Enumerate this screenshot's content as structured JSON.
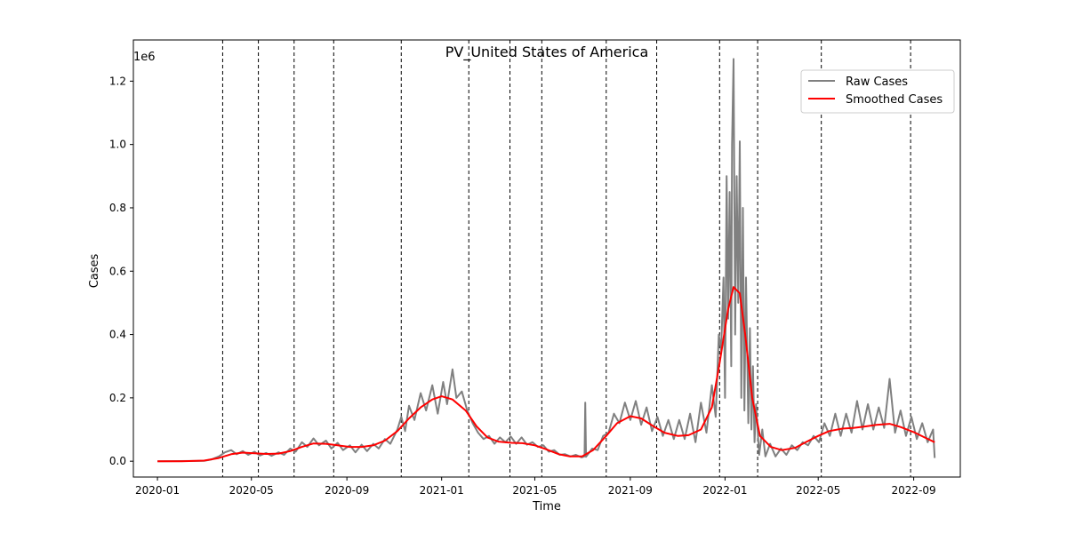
{
  "chart_data": {
    "type": "line",
    "title": "PV_United States of America",
    "xlabel": "Time",
    "ylabel": "Cases",
    "y_multiplier_label": "1e6",
    "xlim": [
      "2019-12-01",
      "2022-10-31"
    ],
    "ylim": [
      -50000,
      1330000
    ],
    "x_ticks": [
      "2020-01",
      "2020-05",
      "2020-09",
      "2021-01",
      "2021-05",
      "2021-09",
      "2022-01",
      "2022-05",
      "2022-09"
    ],
    "x_tick_dates": [
      "2020-01-01",
      "2020-05-01",
      "2020-09-01",
      "2021-01-01",
      "2021-05-01",
      "2021-09-01",
      "2022-01-01",
      "2022-05-01",
      "2022-09-01"
    ],
    "y_ticks": [
      0,
      200000,
      400000,
      600000,
      800000,
      1000000,
      1200000
    ],
    "y_tick_labels": [
      "0.0",
      "0.2",
      "0.4",
      "0.6",
      "0.8",
      "1.0",
      "1.2"
    ],
    "legend": {
      "position": "top-right",
      "entries": [
        "Raw Cases",
        "Smoothed Cases"
      ]
    },
    "grid": false,
    "vertical_lines": [
      "2020-03-25",
      "2020-05-10",
      "2020-06-25",
      "2020-08-15",
      "2020-11-10",
      "2021-02-05",
      "2021-03-30",
      "2021-05-10",
      "2021-08-01",
      "2021-10-05",
      "2021-12-25",
      "2022-02-12",
      "2022-05-05",
      "2022-08-28"
    ],
    "series": [
      {
        "name": "Smoothed Cases",
        "color": "#ff0000",
        "dates": [
          "2020-01-01",
          "2020-02-01",
          "2020-03-01",
          "2020-03-20",
          "2020-04-05",
          "2020-04-20",
          "2020-05-05",
          "2020-05-20",
          "2020-06-05",
          "2020-06-20",
          "2020-07-05",
          "2020-07-20",
          "2020-08-05",
          "2020-08-20",
          "2020-09-05",
          "2020-09-20",
          "2020-10-05",
          "2020-10-20",
          "2020-11-05",
          "2020-11-20",
          "2020-12-05",
          "2020-12-20",
          "2021-01-01",
          "2021-01-15",
          "2021-02-01",
          "2021-02-15",
          "2021-03-01",
          "2021-03-15",
          "2021-04-01",
          "2021-04-15",
          "2021-05-01",
          "2021-05-15",
          "2021-06-01",
          "2021-06-15",
          "2021-07-01",
          "2021-07-15",
          "2021-08-01",
          "2021-08-15",
          "2021-09-01",
          "2021-09-15",
          "2021-10-01",
          "2021-10-15",
          "2021-11-01",
          "2021-11-15",
          "2021-12-01",
          "2021-12-15",
          "2021-12-25",
          "2022-01-05",
          "2022-01-12",
          "2022-01-20",
          "2022-01-27",
          "2022-02-05",
          "2022-02-15",
          "2022-03-01",
          "2022-03-15",
          "2022-04-01",
          "2022-04-15",
          "2022-05-01",
          "2022-05-15",
          "2022-06-01",
          "2022-06-15",
          "2022-07-01",
          "2022-07-15",
          "2022-08-01",
          "2022-08-15",
          "2022-09-01",
          "2022-09-15",
          "2022-09-28"
        ],
        "values": [
          0,
          0,
          2000,
          10000,
          22000,
          27000,
          25000,
          23000,
          24000,
          32000,
          45000,
          56000,
          55000,
          50000,
          45000,
          45000,
          50000,
          65000,
          95000,
          135000,
          170000,
          195000,
          205000,
          195000,
          160000,
          110000,
          75000,
          62000,
          58000,
          57000,
          50000,
          38000,
          22000,
          15000,
          15000,
          35000,
          80000,
          120000,
          142000,
          135000,
          110000,
          90000,
          80000,
          82000,
          100000,
          170000,
          310000,
          480000,
          550000,
          530000,
          400000,
          200000,
          80000,
          45000,
          35000,
          42000,
          60000,
          80000,
          95000,
          103000,
          105000,
          110000,
          115000,
          118000,
          108000,
          92000,
          75000,
          60000
        ]
      },
      {
        "name": "Raw Cases",
        "color": "#808080",
        "dates": [
          "2020-01-01",
          "2020-03-01",
          "2020-03-10",
          "2020-03-20",
          "2020-03-28",
          "2020-04-05",
          "2020-04-12",
          "2020-04-20",
          "2020-04-27",
          "2020-05-05",
          "2020-05-12",
          "2020-05-20",
          "2020-05-27",
          "2020-06-05",
          "2020-06-12",
          "2020-06-20",
          "2020-06-27",
          "2020-07-05",
          "2020-07-12",
          "2020-07-20",
          "2020-07-27",
          "2020-08-05",
          "2020-08-12",
          "2020-08-20",
          "2020-08-27",
          "2020-09-05",
          "2020-09-12",
          "2020-09-20",
          "2020-09-27",
          "2020-10-05",
          "2020-10-12",
          "2020-10-20",
          "2020-10-27",
          "2020-11-05",
          "2020-11-10",
          "2020-11-15",
          "2020-11-20",
          "2020-11-27",
          "2020-12-05",
          "2020-12-12",
          "2020-12-20",
          "2020-12-27",
          "2021-01-03",
          "2021-01-08",
          "2021-01-15",
          "2021-01-20",
          "2021-01-27",
          "2021-02-03",
          "2021-02-10",
          "2021-02-17",
          "2021-02-24",
          "2021-03-03",
          "2021-03-10",
          "2021-03-17",
          "2021-03-24",
          "2021-03-31",
          "2021-04-07",
          "2021-04-14",
          "2021-04-21",
          "2021-04-28",
          "2021-05-05",
          "2021-05-12",
          "2021-05-19",
          "2021-05-26",
          "2021-06-02",
          "2021-06-09",
          "2021-06-16",
          "2021-06-23",
          "2021-06-30",
          "2021-07-04",
          "2021-07-05",
          "2021-07-06",
          "2021-07-14",
          "2021-07-21",
          "2021-07-28",
          "2021-08-04",
          "2021-08-11",
          "2021-08-18",
          "2021-08-25",
          "2021-09-01",
          "2021-09-08",
          "2021-09-15",
          "2021-09-22",
          "2021-09-29",
          "2021-10-06",
          "2021-10-13",
          "2021-10-20",
          "2021-10-27",
          "2021-11-03",
          "2021-11-10",
          "2021-11-17",
          "2021-11-24",
          "2021-12-01",
          "2021-12-08",
          "2021-12-15",
          "2021-12-20",
          "2021-12-24",
          "2021-12-27",
          "2021-12-30",
          "2022-01-01",
          "2022-01-03",
          "2022-01-05",
          "2022-01-07",
          "2022-01-09",
          "2022-01-10",
          "2022-01-12",
          "2022-01-14",
          "2022-01-16",
          "2022-01-18",
          "2022-01-20",
          "2022-01-22",
          "2022-01-24",
          "2022-01-26",
          "2022-01-28",
          "2022-01-31",
          "2022-02-02",
          "2022-02-04",
          "2022-02-06",
          "2022-02-08",
          "2022-02-10",
          "2022-02-14",
          "2022-02-18",
          "2022-02-22",
          "2022-02-28",
          "2022-03-07",
          "2022-03-14",
          "2022-03-21",
          "2022-03-28",
          "2022-04-04",
          "2022-04-11",
          "2022-04-18",
          "2022-04-25",
          "2022-05-02",
          "2022-05-09",
          "2022-05-16",
          "2022-05-23",
          "2022-05-30",
          "2022-06-06",
          "2022-06-13",
          "2022-06-20",
          "2022-06-27",
          "2022-07-04",
          "2022-07-11",
          "2022-07-18",
          "2022-07-25",
          "2022-08-01",
          "2022-08-08",
          "2022-08-15",
          "2022-08-22",
          "2022-08-29",
          "2022-09-05",
          "2022-09-12",
          "2022-09-19",
          "2022-09-26",
          "2022-09-28"
        ],
        "values": [
          0,
          1000,
          5000,
          15000,
          28000,
          35000,
          22000,
          32000,
          20000,
          30000,
          18000,
          26000,
          17000,
          28000,
          20000,
          40000,
          30000,
          60000,
          45000,
          72000,
          50000,
          65000,
          40000,
          58000,
          35000,
          50000,
          28000,
          52000,
          32000,
          55000,
          40000,
          70000,
          55000,
          100000,
          140000,
          95000,
          175000,
          130000,
          215000,
          160000,
          240000,
          150000,
          250000,
          180000,
          290000,
          200000,
          220000,
          160000,
          120000,
          90000,
          70000,
          80000,
          55000,
          75000,
          60000,
          78000,
          55000,
          75000,
          52000,
          60000,
          45000,
          50000,
          30000,
          35000,
          20000,
          22000,
          15000,
          20000,
          12000,
          15000,
          185000,
          14000,
          40000,
          35000,
          80000,
          90000,
          150000,
          120000,
          185000,
          130000,
          190000,
          115000,
          170000,
          95000,
          140000,
          80000,
          130000,
          70000,
          130000,
          70000,
          150000,
          60000,
          185000,
          90000,
          240000,
          140000,
          400000,
          350000,
          580000,
          200000,
          900000,
          450000,
          850000,
          300000,
          1000000,
          1270000,
          400000,
          900000,
          500000,
          1010000,
          200000,
          800000,
          160000,
          580000,
          120000,
          420000,
          100000,
          300000,
          60000,
          180000,
          20000,
          100000,
          15000,
          55000,
          15000,
          40000,
          20000,
          50000,
          35000,
          60000,
          50000,
          80000,
          60000,
          120000,
          80000,
          150000,
          80000,
          150000,
          90000,
          190000,
          100000,
          180000,
          100000,
          170000,
          105000,
          260000,
          90000,
          160000,
          80000,
          140000,
          70000,
          120000,
          60000,
          100000,
          10000
        ]
      }
    ]
  }
}
